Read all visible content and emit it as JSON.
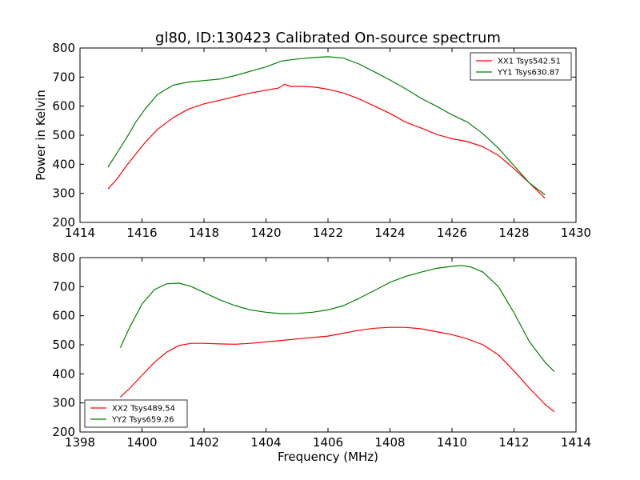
{
  "chart_data": [
    {
      "type": "line",
      "title": "gl80, ID:130423 Calibrated On-source spectrum",
      "xlabel": "",
      "ylabel": "Power in Kelvin",
      "xlim": [
        1414,
        1430
      ],
      "ylim": [
        200,
        800
      ],
      "xticks": [
        1414,
        1416,
        1418,
        1420,
        1422,
        1424,
        1426,
        1428,
        1430
      ],
      "yticks": [
        200,
        300,
        400,
        500,
        600,
        700,
        800
      ],
      "legend_position": "top-right",
      "series": [
        {
          "name": "XX1 Tsys542.51",
          "color": "#ff0000",
          "x": [
            1414.9,
            1415.2,
            1415.5,
            1415.8,
            1416.1,
            1416.5,
            1417.0,
            1417.5,
            1418.0,
            1418.5,
            1419.0,
            1419.5,
            1420.0,
            1420.4,
            1420.6,
            1420.8,
            1421.2,
            1421.6,
            1422.0,
            1422.5,
            1423.0,
            1423.5,
            1424.0,
            1424.5,
            1425.0,
            1425.5,
            1426.0,
            1426.5,
            1427.0,
            1427.5,
            1428.0,
            1428.5,
            1429.0
          ],
          "y": [
            315,
            350,
            395,
            435,
            475,
            520,
            560,
            590,
            608,
            620,
            633,
            645,
            655,
            662,
            675,
            668,
            668,
            665,
            658,
            645,
            625,
            600,
            575,
            545,
            525,
            503,
            488,
            478,
            460,
            430,
            385,
            335,
            283
          ]
        },
        {
          "name": "YY1 Tsys630.87",
          "color": "#008000",
          "x": [
            1414.9,
            1415.2,
            1415.5,
            1415.8,
            1416.1,
            1416.5,
            1417.0,
            1417.5,
            1418.0,
            1418.5,
            1419.0,
            1419.5,
            1420.0,
            1420.5,
            1421.0,
            1421.5,
            1422.0,
            1422.5,
            1423.0,
            1423.5,
            1424.0,
            1424.5,
            1425.0,
            1425.5,
            1426.0,
            1426.5,
            1427.0,
            1427.5,
            1428.0,
            1428.5,
            1429.0
          ],
          "y": [
            390,
            440,
            490,
            545,
            590,
            640,
            672,
            683,
            688,
            693,
            705,
            720,
            735,
            755,
            762,
            767,
            770,
            765,
            745,
            718,
            690,
            660,
            627,
            600,
            570,
            545,
            505,
            455,
            395,
            335,
            295
          ]
        }
      ]
    },
    {
      "type": "line",
      "title": "",
      "xlabel": "Frequency (MHz)",
      "ylabel": "",
      "xlim": [
        1398,
        1414
      ],
      "ylim": [
        200,
        800
      ],
      "xticks": [
        1398,
        1400,
        1402,
        1404,
        1406,
        1408,
        1410,
        1412,
        1414
      ],
      "yticks": [
        200,
        300,
        400,
        500,
        600,
        700,
        800
      ],
      "legend_position": "bottom-left",
      "series": [
        {
          "name": "XX2 Tsys489.54",
          "color": "#ff0000",
          "x": [
            1399.3,
            1399.6,
            1400.0,
            1400.4,
            1400.8,
            1401.2,
            1401.6,
            1402.0,
            1402.5,
            1403.0,
            1403.5,
            1404.0,
            1404.5,
            1405.0,
            1405.5,
            1406.0,
            1406.5,
            1407.0,
            1407.5,
            1408.0,
            1408.5,
            1409.0,
            1409.5,
            1410.0,
            1410.5,
            1411.0,
            1411.5,
            1412.0,
            1412.5,
            1413.0,
            1413.3
          ],
          "y": [
            320,
            350,
            395,
            440,
            475,
            498,
            505,
            505,
            503,
            502,
            505,
            510,
            515,
            520,
            525,
            530,
            540,
            550,
            557,
            560,
            560,
            555,
            545,
            535,
            520,
            500,
            465,
            410,
            350,
            295,
            270
          ]
        },
        {
          "name": "YY2 Tsys659.26",
          "color": "#008000",
          "x": [
            1399.3,
            1399.6,
            1400.0,
            1400.4,
            1400.8,
            1401.2,
            1401.6,
            1402.0,
            1402.5,
            1403.0,
            1403.5,
            1404.0,
            1404.5,
            1405.0,
            1405.5,
            1406.0,
            1406.5,
            1407.0,
            1407.5,
            1408.0,
            1408.5,
            1409.0,
            1409.5,
            1410.0,
            1410.3,
            1410.6,
            1411.0,
            1411.5,
            1412.0,
            1412.5,
            1413.0,
            1413.3
          ],
          "y": [
            490,
            560,
            640,
            690,
            710,
            712,
            700,
            680,
            655,
            635,
            620,
            612,
            607,
            608,
            612,
            620,
            635,
            660,
            687,
            715,
            735,
            750,
            763,
            770,
            773,
            768,
            750,
            700,
            610,
            510,
            440,
            408
          ]
        }
      ]
    }
  ]
}
